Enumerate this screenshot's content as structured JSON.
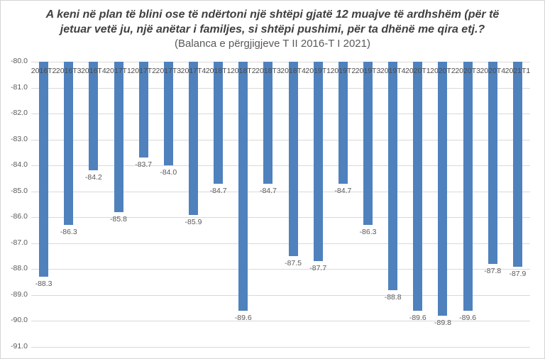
{
  "title": {
    "line1": "A keni në plan të blini ose të ndërtoni një shtëpi gjatë 12 muajve të ardhshëm (për të",
    "line2": "jetuar vetë ju, një anëtar i familjes, si shtëpi pushimi, për ta dhënë me qira etj.?",
    "line3": "(Balanca e përgjigjeve T II 2016-T I 2021)"
  },
  "chart_data": {
    "type": "bar",
    "categories": [
      "2016T2",
      "2016T3",
      "2016T4",
      "2017T1",
      "2017T2",
      "2017T3",
      "2017T4",
      "2018T1",
      "2018T2",
      "2018T3",
      "2018T4",
      "2019T1",
      "2019T2",
      "2019T3",
      "2019T4",
      "2020T1",
      "2020T2",
      "2020T3",
      "2020T4",
      "2021T1"
    ],
    "values": [
      -88.3,
      -86.3,
      -84.2,
      -85.8,
      -83.7,
      -84.0,
      -85.9,
      -84.7,
      -89.6,
      -84.7,
      -87.5,
      -87.7,
      -84.7,
      -86.3,
      -88.8,
      -89.6,
      -89.8,
      -89.6,
      -87.8,
      -87.9
    ],
    "data_labels": [
      "-88.3",
      "-86.3",
      "-84.2",
      "-85.8",
      "-83.7",
      "-84.0",
      "-85.9",
      "-84.7",
      "-89.6",
      "-84.7",
      "-87.5",
      "-87.7",
      "-84.7",
      "-86.3",
      "-88.8",
      "-89.6",
      "-89.8",
      "-89.6",
      "-87.8",
      "-87.9"
    ],
    "y_ticks": [
      "-80.0",
      "-81.0",
      "-82.0",
      "-83.0",
      "-84.0",
      "-85.0",
      "-86.0",
      "-87.0",
      "-88.0",
      "-89.0",
      "-90.0",
      "-91.0"
    ],
    "ylim": [
      -91.0,
      -80.0
    ],
    "bar_base": -80.0,
    "grid": true,
    "legend": false,
    "xlabel": "",
    "ylabel": "",
    "colors": {
      "bar": "#4F81BD",
      "gridline": "#D9D9D9",
      "axis_text": "#595959",
      "title_text": "#404040",
      "background": "#FFFFFF"
    }
  }
}
